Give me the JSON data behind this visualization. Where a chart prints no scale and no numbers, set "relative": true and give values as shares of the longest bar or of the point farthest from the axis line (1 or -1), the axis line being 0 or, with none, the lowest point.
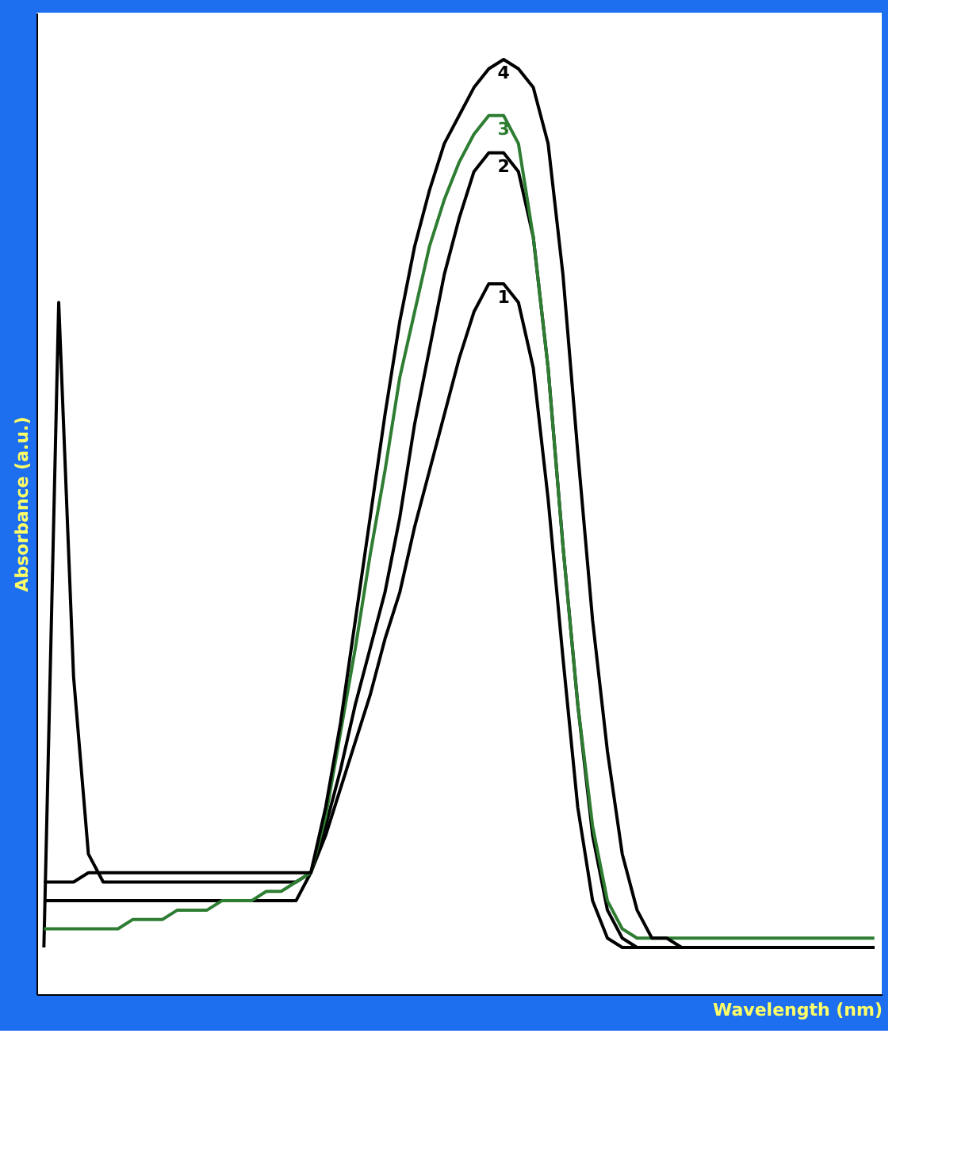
{
  "chart_data": {
    "type": "line",
    "relative": true,
    "xlabel": "Wavelength (nm)",
    "ylabel": "Absorbance (a.u.)",
    "line_style": "solid",
    "categories": [
      null,
      null,
      null,
      null,
      null,
      null,
      null,
      null,
      null,
      null,
      null,
      null,
      null,
      null,
      null,
      null,
      null,
      null,
      null,
      null,
      null,
      null,
      null,
      null,
      null,
      null,
      null,
      null,
      null,
      null,
      null,
      null,
      null,
      null,
      null,
      null,
      null,
      null,
      null,
      null,
      null,
      null,
      null,
      null,
      null,
      null,
      null,
      null,
      null,
      null,
      null,
      null,
      null,
      null,
      null,
      null,
      null
    ],
    "series": [
      {
        "name": "1",
        "color": "#000000",
        "values": [
          0.05,
          0.74,
          0.34,
          0.15,
          0.12,
          0.12,
          0.12,
          0.12,
          0.12,
          0.12,
          0.12,
          0.12,
          0.12,
          0.12,
          0.12,
          0.12,
          0.12,
          0.12,
          0.13,
          0.17,
          0.22,
          0.27,
          0.32,
          0.38,
          0.43,
          0.5,
          0.56,
          0.62,
          0.68,
          0.73,
          0.76,
          0.76,
          0.74,
          0.67,
          0.53,
          0.36,
          0.2,
          0.1,
          0.06,
          0.05,
          0.05,
          0.05,
          0.05,
          0.05,
          0.05,
          0.05,
          0.05,
          0.05,
          0.05,
          0.05,
          0.05,
          0.05,
          0.05,
          0.05,
          0.05,
          0.05,
          0.05
        ]
      },
      {
        "name": "2",
        "color": "#000000",
        "values": [
          0.1,
          0.1,
          0.1,
          0.1,
          0.1,
          0.1,
          0.1,
          0.1,
          0.1,
          0.1,
          0.1,
          0.1,
          0.1,
          0.1,
          0.1,
          0.1,
          0.1,
          0.1,
          0.13,
          0.18,
          0.24,
          0.31,
          0.37,
          0.43,
          0.51,
          0.61,
          0.69,
          0.77,
          0.83,
          0.88,
          0.9,
          0.9,
          0.88,
          0.81,
          0.67,
          0.48,
          0.31,
          0.17,
          0.09,
          0.06,
          0.05,
          0.05,
          0.05,
          0.05,
          0.05,
          0.05,
          0.05,
          0.05,
          0.05,
          0.05,
          0.05,
          0.05,
          0.05,
          0.05,
          0.05,
          0.05,
          0.05
        ]
      },
      {
        "name": "3",
        "color": "#2e7d32",
        "values": [
          0.07,
          0.07,
          0.07,
          0.07,
          0.07,
          0.07,
          0.08,
          0.08,
          0.08,
          0.09,
          0.09,
          0.09,
          0.1,
          0.1,
          0.1,
          0.11,
          0.11,
          0.12,
          0.13,
          0.19,
          0.28,
          0.37,
          0.47,
          0.56,
          0.66,
          0.73,
          0.8,
          0.85,
          0.89,
          0.92,
          0.94,
          0.94,
          0.91,
          0.81,
          0.67,
          0.48,
          0.31,
          0.18,
          0.1,
          0.07,
          0.06,
          0.06,
          0.06,
          0.06,
          0.06,
          0.06,
          0.06,
          0.06,
          0.06,
          0.06,
          0.06,
          0.06,
          0.06,
          0.06,
          0.06,
          0.06,
          0.06
        ]
      },
      {
        "name": "4",
        "color": "#000000",
        "values": [
          0.12,
          0.12,
          0.12,
          0.13,
          0.13,
          0.13,
          0.13,
          0.13,
          0.13,
          0.13,
          0.13,
          0.13,
          0.13,
          0.13,
          0.13,
          0.13,
          0.13,
          0.13,
          0.13,
          0.2,
          0.29,
          0.4,
          0.51,
          0.62,
          0.72,
          0.8,
          0.86,
          0.91,
          0.94,
          0.97,
          0.99,
          1.0,
          0.99,
          0.97,
          0.91,
          0.77,
          0.58,
          0.4,
          0.26,
          0.15,
          0.09,
          0.06,
          0.06,
          0.05,
          0.05,
          0.05,
          0.05,
          0.05,
          0.05,
          0.05,
          0.05,
          0.05,
          0.05,
          0.05,
          0.05,
          0.05,
          0.05
        ]
      }
    ]
  }
}
